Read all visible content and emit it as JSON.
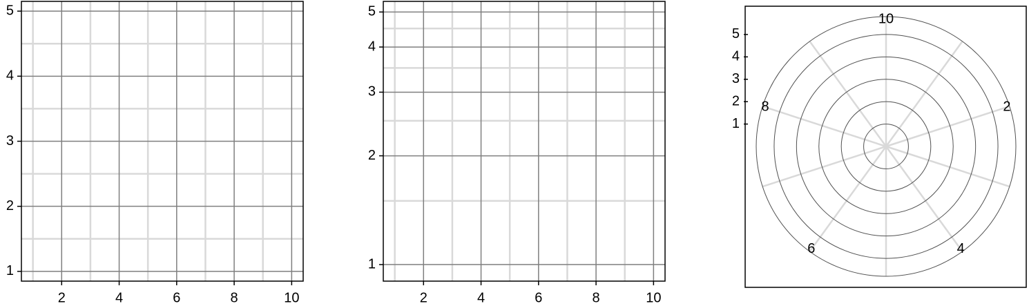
{
  "chart_data": [
    {
      "type": "line",
      "title": "",
      "xlabel": "",
      "ylabel": "",
      "xscale": "linear",
      "yscale": "linear",
      "xlim": [
        0.6,
        10.4
      ],
      "ylim": [
        0.85,
        5.15
      ],
      "xticks": [
        "2",
        "4",
        "6",
        "8",
        "10"
      ],
      "yticks": [
        "1",
        "2",
        "3",
        "4",
        "5"
      ],
      "x_minor_gridlines": [
        1,
        3,
        5,
        7,
        9
      ],
      "y_minor_gridlines": [
        1.5,
        2.5,
        3.5,
        4.5
      ],
      "grid": true,
      "series": []
    },
    {
      "type": "line",
      "title": "",
      "xlabel": "",
      "ylabel": "",
      "xscale": "linear",
      "yscale": "log",
      "xlim": [
        0.6,
        10.4
      ],
      "ylim": [
        0.9,
        5.35
      ],
      "xticks": [
        "2",
        "4",
        "6",
        "8",
        "10"
      ],
      "yticks": [
        "1",
        "2",
        "3",
        "4",
        "5"
      ],
      "x_minor_gridlines": [
        1,
        3,
        5,
        7,
        9
      ],
      "y_minor_gridlines": [
        1.5,
        2.5,
        3.5,
        4.5
      ],
      "grid": true,
      "series": []
    },
    {
      "type": "polar",
      "title": "",
      "theta_ticks": [
        "10",
        "2",
        "4",
        "6",
        "8"
      ],
      "theta_tick_values": [
        10,
        2,
        4,
        6,
        8
      ],
      "theta_period": 10,
      "theta_direction": "clockwise",
      "theta_zero_location": "top",
      "radial_ticks": [
        "1",
        "2",
        "3",
        "4",
        "5"
      ],
      "radial_tick_values": [
        1,
        2,
        3,
        4,
        5
      ],
      "radial_lim": [
        0,
        5.8
      ],
      "minor_spokes": [
        1,
        3,
        5,
        7,
        9
      ],
      "grid": true,
      "series": []
    }
  ],
  "colors": {
    "major_grid": "#7f7f7f",
    "minor_grid": "#d9d9d9",
    "frame": "#000000"
  }
}
